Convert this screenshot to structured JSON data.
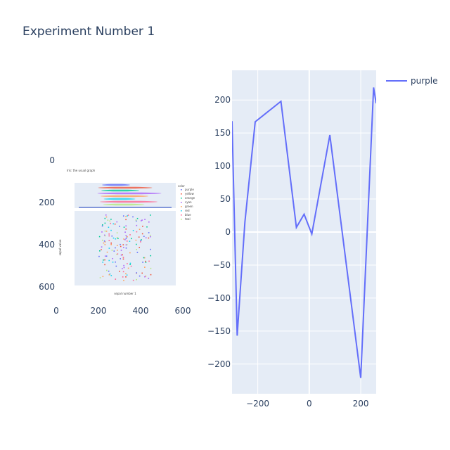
{
  "figure": {
    "title": "Experiment Number 1"
  },
  "chart_data": [
    {
      "type": "image",
      "xlim": [
        0,
        640
      ],
      "ylim": [
        640,
        0
      ],
      "xticks": [
        0,
        200,
        400,
        600
      ],
      "yticks": [
        0,
        200,
        400,
        600
      ],
      "grid": true,
      "embedded": {
        "title": "Iris: the usual graph",
        "legend_title": "color",
        "legend": [
          "purple",
          "yellow",
          "orange",
          "cyan",
          "green",
          "red",
          "blue",
          "teal"
        ],
        "xlabel": "sepal number 1",
        "ylabel": "sepal value",
        "colors": [
          "#636efa",
          "#ef553b",
          "#00cc96",
          "#ab63fa",
          "#ffa15a",
          "#19d3f3",
          "#ff6692",
          "#b6e880"
        ]
      }
    },
    {
      "type": "line",
      "series": [
        {
          "name": "purple",
          "color": "#636efa",
          "x": [
            -300,
            -280,
            -250,
            -210,
            -110,
            -50,
            -20,
            10,
            80,
            200,
            250,
            260
          ],
          "y": [
            168,
            -157,
            15,
            167,
            198,
            7,
            27,
            -3,
            147,
            -221,
            219,
            195
          ]
        }
      ],
      "xlim": [
        -300,
        260
      ],
      "ylim": [
        -245,
        245
      ],
      "xticks": [
        -200,
        0,
        200
      ],
      "yticks": [
        -200,
        -150,
        -100,
        -50,
        0,
        50,
        100,
        150,
        200
      ],
      "grid": true,
      "legend_position": "top-right"
    }
  ]
}
